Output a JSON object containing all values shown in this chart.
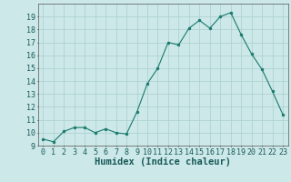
{
  "x": [
    0,
    1,
    2,
    3,
    4,
    5,
    6,
    7,
    8,
    9,
    10,
    11,
    12,
    13,
    14,
    15,
    16,
    17,
    18,
    19,
    20,
    21,
    22,
    23
  ],
  "y": [
    9.5,
    9.3,
    10.1,
    10.4,
    10.4,
    10.0,
    10.3,
    10.0,
    9.9,
    11.6,
    13.8,
    15.0,
    17.0,
    16.8,
    18.1,
    18.7,
    18.1,
    19.0,
    19.3,
    17.6,
    16.1,
    14.9,
    13.2,
    11.4
  ],
  "line_color": "#1a7a6e",
  "marker": "o",
  "marker_size": 2,
  "bg_color": "#cce8e8",
  "grid_color": "#aacfcf",
  "xlabel": "Humidex (Indice chaleur)",
  "ylim": [
    9,
    20
  ],
  "xlim": [
    -0.5,
    23.5
  ],
  "yticks": [
    9,
    10,
    11,
    12,
    13,
    14,
    15,
    16,
    17,
    18,
    19
  ],
  "xticks": [
    0,
    1,
    2,
    3,
    4,
    5,
    6,
    7,
    8,
    9,
    10,
    11,
    12,
    13,
    14,
    15,
    16,
    17,
    18,
    19,
    20,
    21,
    22,
    23
  ],
  "tick_fontsize": 6,
  "xlabel_fontsize": 7.5
}
